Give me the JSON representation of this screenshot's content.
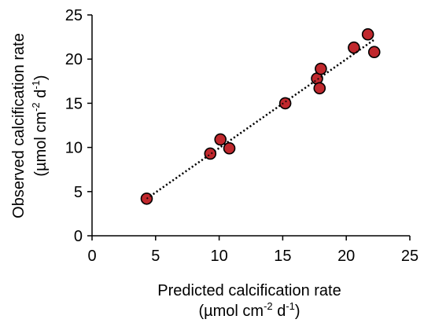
{
  "chart_data": {
    "type": "scatter",
    "xlabel": "Predicted calcification rate",
    "ylabel": "Observed calcification rate",
    "units": {
      "prefix": "(µmol cm",
      "exp1": "-2",
      "mid": " d",
      "exp2": "-1",
      "suffix": ")"
    },
    "xlim": [
      0,
      25
    ],
    "ylim": [
      0,
      25
    ],
    "xticks": [
      "0",
      "5",
      "10",
      "15",
      "20",
      "25"
    ],
    "yticks": [
      "0",
      "5",
      "10",
      "15",
      "20",
      "25"
    ],
    "grid": false,
    "legend": "none",
    "series": [
      {
        "points": [
          {
            "x": 4.3,
            "y": 4.2
          },
          {
            "x": 9.3,
            "y": 9.3
          },
          {
            "x": 10.1,
            "y": 10.9
          },
          {
            "x": 10.8,
            "y": 9.9
          },
          {
            "x": 15.2,
            "y": 15.0
          },
          {
            "x": 17.7,
            "y": 17.8
          },
          {
            "x": 17.9,
            "y": 16.7
          },
          {
            "x": 18.0,
            "y": 18.9
          },
          {
            "x": 20.6,
            "y": 21.3
          },
          {
            "x": 21.7,
            "y": 22.8
          },
          {
            "x": 22.2,
            "y": 20.8
          }
        ]
      }
    ],
    "trendline": {
      "style": "dotted",
      "x": [
        4.3,
        22.2
      ],
      "y": [
        4.2,
        22.2
      ]
    },
    "marker_color": "#c0282d",
    "marker_edge": "#000000"
  }
}
